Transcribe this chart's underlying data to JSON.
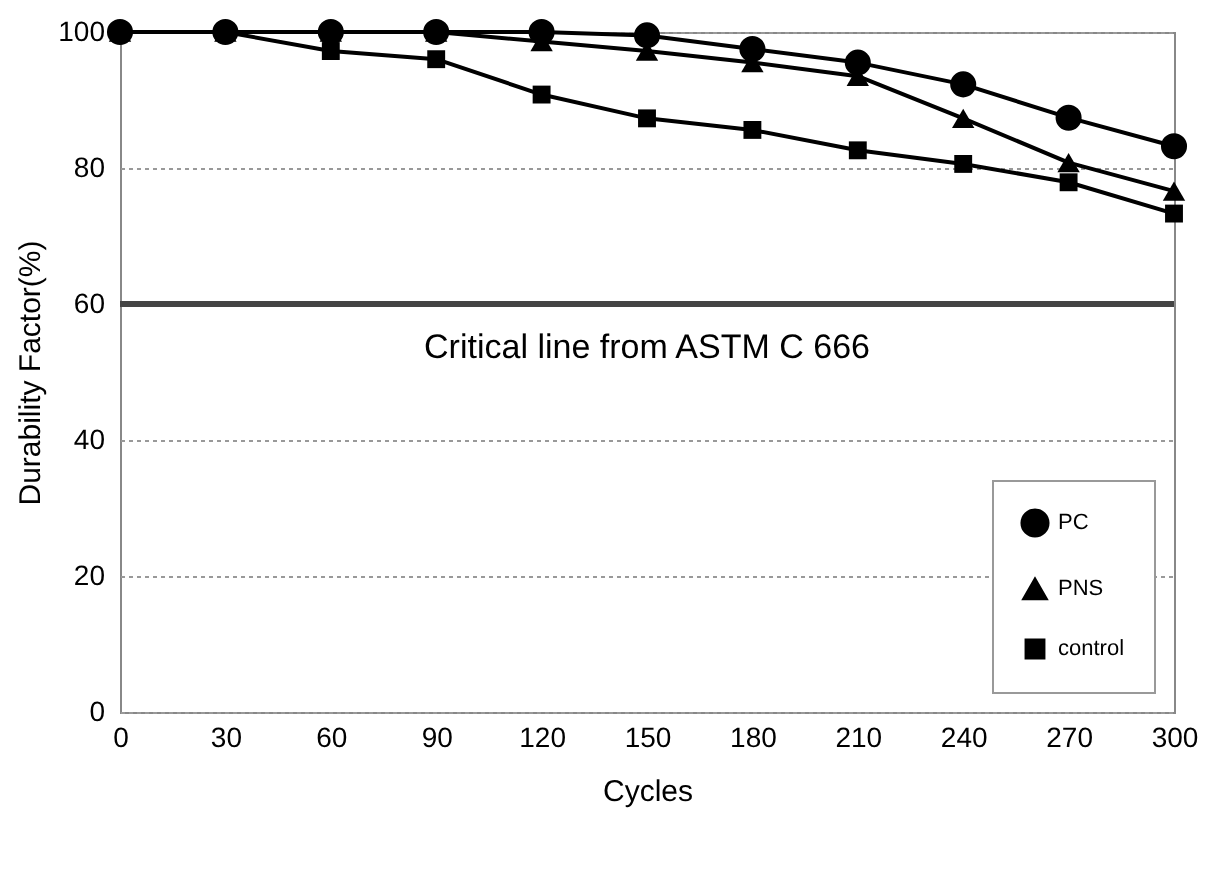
{
  "chart_data": {
    "type": "line",
    "xlabel": "Cycles",
    "ylabel": "Durability Factor(%)",
    "x": [
      0,
      30,
      60,
      90,
      120,
      150,
      180,
      210,
      240,
      270,
      300
    ],
    "series": [
      {
        "name": "PC",
        "color": "#000000",
        "marker": "circle",
        "values": [
          100,
          100,
          100,
          100,
          100,
          99.5,
          97.5,
          95.5,
          92.3,
          87.4,
          83.2
        ]
      },
      {
        "name": "PNS",
        "color": "#000000",
        "marker": "triangle",
        "values": [
          100,
          100,
          100,
          100,
          98.6,
          97.2,
          95.5,
          93.5,
          87.3,
          80.8,
          76.6
        ]
      },
      {
        "name": "control",
        "color": "#000000",
        "marker": "square",
        "values": [
          100,
          100,
          97.2,
          96,
          90.8,
          87.3,
          85.6,
          82.6,
          80.6,
          77.9,
          73.3
        ]
      }
    ],
    "xlim": [
      0,
      300
    ],
    "xticks": [
      0,
      30,
      60,
      90,
      120,
      150,
      180,
      210,
      240,
      270,
      300
    ],
    "ylim": [
      0,
      100
    ],
    "yticks": [
      0,
      20,
      40,
      60,
      80,
      100
    ],
    "grid": "y",
    "legend": "bottom right",
    "line_style": "solid",
    "ref_lines": [
      {
        "axis": "y",
        "value": 60,
        "label": "Critical line from ASTM C 666",
        "color": "#444444"
      }
    ]
  }
}
